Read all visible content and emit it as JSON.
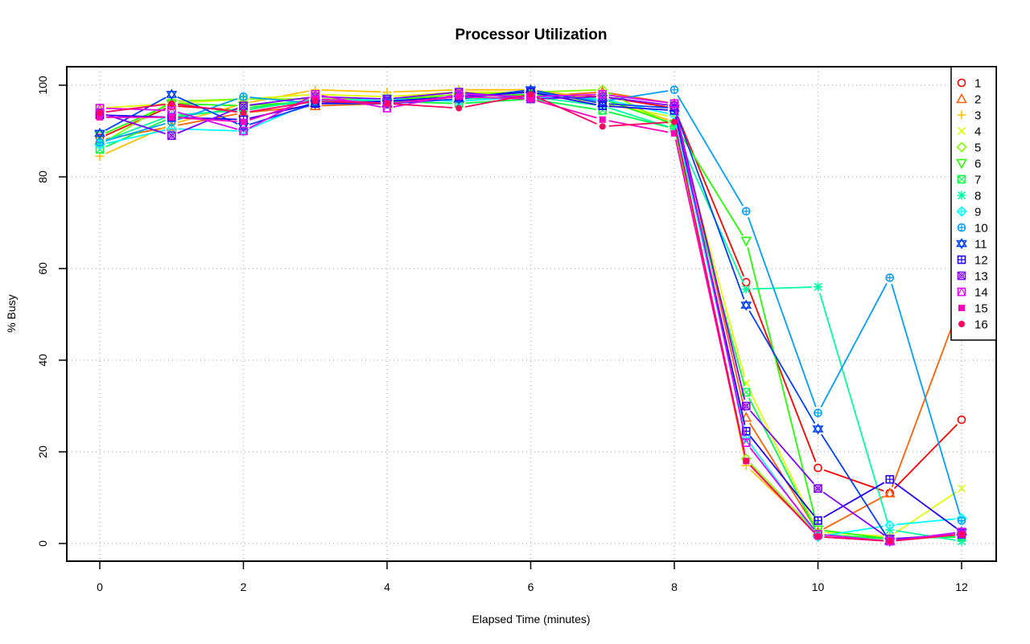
{
  "chart_data": {
    "type": "line",
    "title": "Processor Utilization",
    "xlabel": "Elapsed Time (minutes)",
    "ylabel": "% Busy",
    "x": [
      0,
      1,
      2,
      3,
      4,
      5,
      6,
      7,
      8,
      9,
      10,
      11,
      12
    ],
    "xlim": [
      -0.3,
      12.5
    ],
    "ylim": [
      -4,
      104
    ],
    "xticks": [
      0,
      2,
      4,
      6,
      8,
      10,
      12
    ],
    "yticks": [
      0,
      20,
      40,
      60,
      80,
      100
    ],
    "xtick_labels": [
      "0",
      "2",
      "4",
      "6",
      "8",
      "10",
      "12"
    ],
    "ytick_labels": [
      "0",
      "20",
      "40",
      "60",
      "80",
      "100"
    ],
    "grid": true,
    "legend_position": "top-right",
    "series": [
      {
        "name": "1",
        "color": "#ff0000",
        "marker": "circle-open",
        "values": [
          88.5,
          95.5,
          94.5,
          97.0,
          96.0,
          97.5,
          98.0,
          97.5,
          95.0,
          57.0,
          16.5,
          11.0,
          27.0
        ]
      },
      {
        "name": "2",
        "color": "#ff6000",
        "marker": "triangle-up",
        "values": [
          88.0,
          91.0,
          94.0,
          95.5,
          96.0,
          97.0,
          97.5,
          98.5,
          96.0,
          27.5,
          2.5,
          11.0,
          53.0
        ]
      },
      {
        "name": "3",
        "color": "#ffbf00",
        "marker": "plus",
        "values": [
          84.5,
          91.5,
          96.0,
          99.0,
          98.5,
          99.0,
          99.0,
          97.0,
          92.0,
          17.0,
          2.0,
          0.5,
          2.0
        ]
      },
      {
        "name": "4",
        "color": "#dfff00",
        "marker": "cross",
        "values": [
          95.0,
          96.0,
          97.0,
          98.0,
          97.5,
          98.5,
          98.5,
          96.0,
          93.0,
          35.0,
          2.5,
          1.5,
          12.0
        ]
      },
      {
        "name": "5",
        "color": "#80ff00",
        "marker": "diamond-open",
        "values": [
          87.0,
          96.5,
          97.0,
          97.0,
          97.0,
          98.0,
          98.5,
          99.0,
          91.0,
          18.5,
          2.0,
          1.0,
          2.0
        ]
      },
      {
        "name": "6",
        "color": "#20ff00",
        "marker": "triangle-down",
        "values": [
          89.0,
          96.0,
          95.5,
          96.5,
          97.0,
          97.5,
          98.0,
          97.0,
          91.5,
          66.0,
          3.0,
          1.0,
          1.5
        ]
      },
      {
        "name": "7",
        "color": "#00ff40",
        "marker": "square-cross",
        "values": [
          86.0,
          93.0,
          95.0,
          96.5,
          96.5,
          96.0,
          97.0,
          94.5,
          90.5,
          33.0,
          2.0,
          1.0,
          1.5
        ]
      },
      {
        "name": "8",
        "color": "#00ff9f",
        "marker": "asterisk",
        "values": [
          87.5,
          93.5,
          94.5,
          97.0,
          96.0,
          97.0,
          97.5,
          95.5,
          90.5,
          55.5,
          56.0,
          3.0,
          0.5
        ]
      },
      {
        "name": "9",
        "color": "#00ffff",
        "marker": "diamond-plus",
        "values": [
          87.0,
          90.5,
          90.0,
          96.5,
          97.0,
          96.5,
          97.5,
          97.0,
          93.5,
          23.0,
          1.5,
          4.0,
          5.5
        ]
      },
      {
        "name": "10",
        "color": "#009fff",
        "marker": "circle-plus",
        "values": [
          87.5,
          92.0,
          97.5,
          96.0,
          96.5,
          97.5,
          98.5,
          96.5,
          99.0,
          72.5,
          28.5,
          58.0,
          5.0
        ]
      },
      {
        "name": "11",
        "color": "#0040ff",
        "marker": "star-of-david",
        "values": [
          89.5,
          98.0,
          91.0,
          96.0,
          96.0,
          97.0,
          99.0,
          96.0,
          95.0,
          52.0,
          25.0,
          0.5,
          2.5
        ]
      },
      {
        "name": "12",
        "color": "#2000ff",
        "marker": "square-plus",
        "values": [
          93.5,
          93.0,
          92.5,
          96.0,
          96.5,
          97.5,
          98.5,
          95.5,
          94.5,
          24.5,
          5.0,
          14.0,
          2.5
        ]
      },
      {
        "name": "13",
        "color": "#8000ff",
        "marker": "circle-cross",
        "values": [
          94.0,
          89.0,
          95.5,
          97.5,
          97.0,
          98.5,
          97.0,
          97.5,
          95.5,
          30.0,
          12.0,
          1.0,
          2.0
        ]
      },
      {
        "name": "14",
        "color": "#df00ff",
        "marker": "square-triangle",
        "values": [
          95.0,
          94.5,
          90.0,
          98.0,
          95.0,
          98.0,
          97.5,
          98.0,
          96.0,
          22.0,
          2.0,
          0.5,
          2.5
        ]
      },
      {
        "name": "15",
        "color": "#ff00bf",
        "marker": "square-filled",
        "values": [
          93.0,
          93.0,
          92.0,
          97.0,
          96.0,
          97.5,
          97.0,
          92.5,
          89.5,
          18.0,
          1.5,
          0.5,
          2.0
        ]
      },
      {
        "name": "16",
        "color": "#ff0060",
        "marker": "circle-filled",
        "values": [
          94.0,
          96.0,
          94.0,
          96.5,
          96.0,
          95.0,
          98.0,
          91.0,
          92.0,
          18.0,
          1.5,
          0.5,
          2.0
        ]
      }
    ]
  }
}
